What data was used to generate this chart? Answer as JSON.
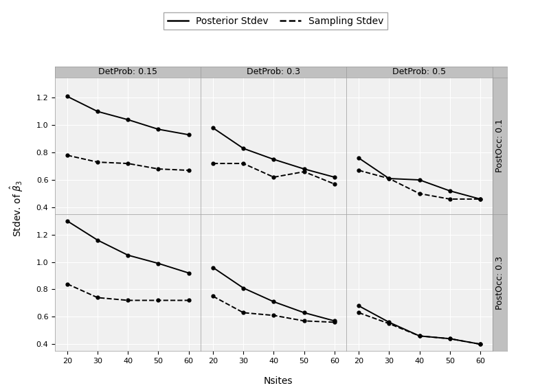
{
  "nsites": [
    20,
    30,
    40,
    50,
    60
  ],
  "det_probs_keys": [
    "0.15",
    "0.3",
    "0.5"
  ],
  "post_occ_keys": [
    "0.1",
    "0.3"
  ],
  "det_prob_labels": [
    "DetProb: 0.15",
    "DetProb: 0.3",
    "DetProb: 0.5"
  ],
  "post_occ_labels": [
    "PostOcc: 0.1",
    "PostOcc: 0.3"
  ],
  "posterior_stdev": {
    "0.1": {
      "0.15": [
        1.21,
        1.1,
        1.04,
        0.97,
        0.93
      ],
      "0.3": [
        0.98,
        0.83,
        0.75,
        0.68,
        0.62
      ],
      "0.5": [
        0.76,
        0.61,
        0.6,
        0.52,
        0.46
      ]
    },
    "0.3": {
      "0.15": [
        1.3,
        1.16,
        1.05,
        0.99,
        0.92
      ],
      "0.3": [
        0.96,
        0.81,
        0.71,
        0.63,
        0.57
      ],
      "0.5": [
        0.68,
        0.56,
        0.46,
        0.44,
        0.4
      ]
    }
  },
  "sampling_stdev": {
    "0.1": {
      "0.15": [
        0.78,
        0.73,
        0.72,
        0.68,
        0.67
      ],
      "0.3": [
        0.72,
        0.72,
        0.62,
        0.66,
        0.57
      ],
      "0.5": [
        0.67,
        0.61,
        0.5,
        0.46,
        0.46
      ]
    },
    "0.3": {
      "0.15": [
        0.84,
        0.74,
        0.72,
        0.72,
        0.72
      ],
      "0.3": [
        0.75,
        0.63,
        0.61,
        0.57,
        0.56
      ],
      "0.5": [
        0.63,
        0.55,
        0.46,
        0.44,
        0.4
      ]
    }
  },
  "ylim": [
    0.35,
    1.35
  ],
  "yticks": [
    0.4,
    0.6,
    0.8,
    1.0,
    1.2
  ],
  "xlabel": "Nsites",
  "ylabel": "Stdev. of $\\hat{\\beta}_3$",
  "legend_labels": [
    "Posterior Stdev",
    "Sampling Stdev"
  ],
  "strip_bg_color": "#c0c0c0",
  "panel_bg_color": "#f0f0f0",
  "grid_color": "#ffffff",
  "strip_fontsize": 9,
  "tick_fontsize": 8,
  "axis_label_fontsize": 10,
  "legend_fontsize": 10
}
